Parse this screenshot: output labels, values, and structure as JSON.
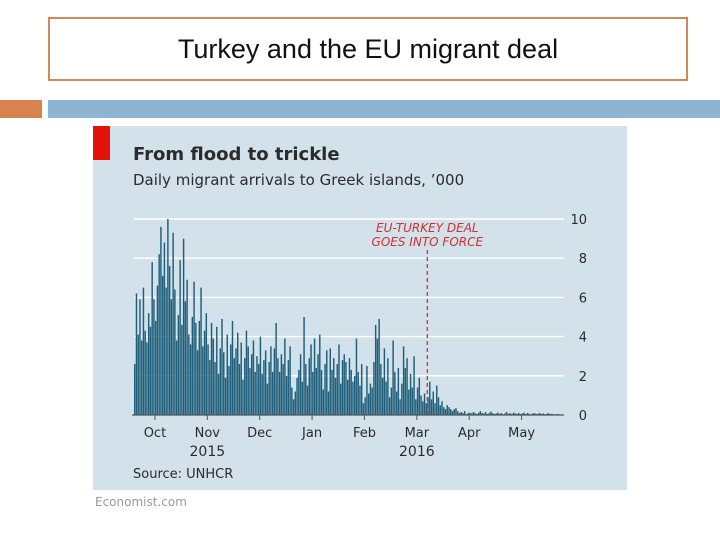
{
  "slide": {
    "title": "Turkey and the EU migrant deal",
    "credit": "Economist.com"
  },
  "colors": {
    "chart_background": "#d2e1ea",
    "bar_fill": "#1f5f7a",
    "accent_red": "#e3120b",
    "annotation_red": "#d0312d",
    "gridline": "#ffffff",
    "title_border": "#d08a5a",
    "orange_bar": "#d8834f",
    "blue_bar": "#8eb4d4"
  },
  "chart_data": {
    "type": "bar",
    "title": "From flood to trickle",
    "subtitle": "Daily migrant arrivals to Greek islands, ’000",
    "source": "Source: UNHCR",
    "xlabel": "",
    "ylabel": "",
    "ylim": [
      0,
      10
    ],
    "yticks": [
      0,
      2,
      4,
      6,
      8,
      10
    ],
    "y_axis_position": "right",
    "grid": true,
    "start_date": "2015-09-25",
    "end_date": "2016-05-22",
    "month_labels": [
      {
        "label": "Oct",
        "day": 12
      },
      {
        "label": "Nov",
        "day": 42
      },
      {
        "label": "Dec",
        "day": 72
      },
      {
        "label": "Jan",
        "day": 102
      },
      {
        "label": "Feb",
        "day": 132
      },
      {
        "label": "Mar",
        "day": 162
      },
      {
        "label": "Apr",
        "day": 192
      },
      {
        "label": "May",
        "day": 222
      }
    ],
    "year_labels": [
      {
        "label": "2015",
        "day": 42
      },
      {
        "label": "2016",
        "day": 162
      }
    ],
    "annotation": {
      "lines": [
        "EU-TURKEY DEAL",
        "GOES INTO FORCE"
      ],
      "day": 168
    },
    "x_unit": "days since 2015-09-25",
    "values": [
      2.6,
      6.2,
      4.1,
      5.9,
      3.8,
      6.5,
      4.3,
      3.7,
      5.2,
      4.5,
      7.8,
      5.9,
      4.8,
      6.6,
      8.2,
      9.6,
      7.1,
      8.8,
      6.5,
      10.0,
      7.6,
      5.9,
      9.3,
      6.4,
      3.8,
      5.1,
      7.9,
      4.6,
      9.0,
      5.8,
      6.9,
      4.1,
      3.6,
      5.0,
      6.8,
      4.7,
      3.3,
      4.8,
      6.5,
      3.5,
      4.3,
      5.2,
      3.6,
      2.8,
      4.7,
      3.9,
      2.7,
      4.5,
      2.1,
      3.4,
      4.9,
      3.2,
      1.9,
      4.1,
      2.5,
      3.6,
      4.8,
      2.9,
      3.4,
      4.2,
      2.6,
      3.7,
      1.8,
      2.9,
      4.3,
      3.5,
      2.4,
      3.1,
      3.8,
      2.2,
      3.0,
      2.6,
      4.0,
      2.1,
      2.8,
      3.3,
      1.6,
      2.7,
      3.5,
      2.2,
      3.4,
      4.7,
      2.9,
      2.2,
      3.1,
      2.6,
      3.9,
      2.0,
      2.8,
      3.5,
      1.4,
      0.8,
      1.2,
      1.9,
      2.3,
      3.1,
      1.7,
      5.0,
      2.6,
      1.5,
      2.9,
      3.6,
      2.2,
      3.9,
      2.4,
      3.1,
      4.1,
      2.3,
      1.3,
      2.6,
      3.3,
      1.2,
      3.4,
      2.3,
      2.9,
      1.9,
      2.6,
      3.6,
      1.6,
      2.8,
      3.1,
      2.7,
      1.8,
      2.9,
      2.3,
      1.7,
      2.0,
      3.9,
      2.2,
      1.5,
      2.6,
      0.6,
      0.9,
      2.5,
      1.1,
      1.6,
      1.4,
      2.7,
      4.6,
      3.9,
      4.9,
      2.6,
      1.9,
      3.4,
      1.7,
      2.9,
      0.9,
      1.4,
      3.8,
      2.2,
      1.2,
      2.4,
      0.8,
      1.6,
      3.5,
      2.4,
      2.9,
      1.3,
      2.1,
      1.4,
      3.0,
      0.8,
      1.4,
      1.9,
      1.0,
      0.7,
      1.1,
      0.6,
      0.9,
      1.7,
      0.8,
      1.2,
      0.6,
      1.5,
      0.9,
      0.5,
      0.7,
      0.4,
      0.3,
      0.5,
      0.4,
      0.3,
      0.2,
      0.3,
      0.35,
      0.2,
      0.1,
      0.15,
      0.1,
      0.2,
      0.05,
      0.1,
      0.12,
      0.08,
      0.15,
      0.1,
      0.05,
      0.12,
      0.2,
      0.1,
      0.08,
      0.15,
      0.05,
      0.1,
      0.18,
      0.1,
      0.05,
      0.08,
      0.12,
      0.06,
      0.1,
      0.04,
      0.08,
      0.15,
      0.06,
      0.1,
      0.05,
      0.12,
      0.08,
      0.06,
      0.1,
      0.05,
      0.08,
      0.12,
      0.05,
      0.1,
      0.06,
      0.04,
      0.08,
      0.1,
      0.05,
      0.07,
      0.1,
      0.05,
      0.08,
      0.04,
      0.06,
      0.1,
      0.05,
      0.06,
      0.04,
      0.03,
      0.05,
      0.04
    ]
  }
}
